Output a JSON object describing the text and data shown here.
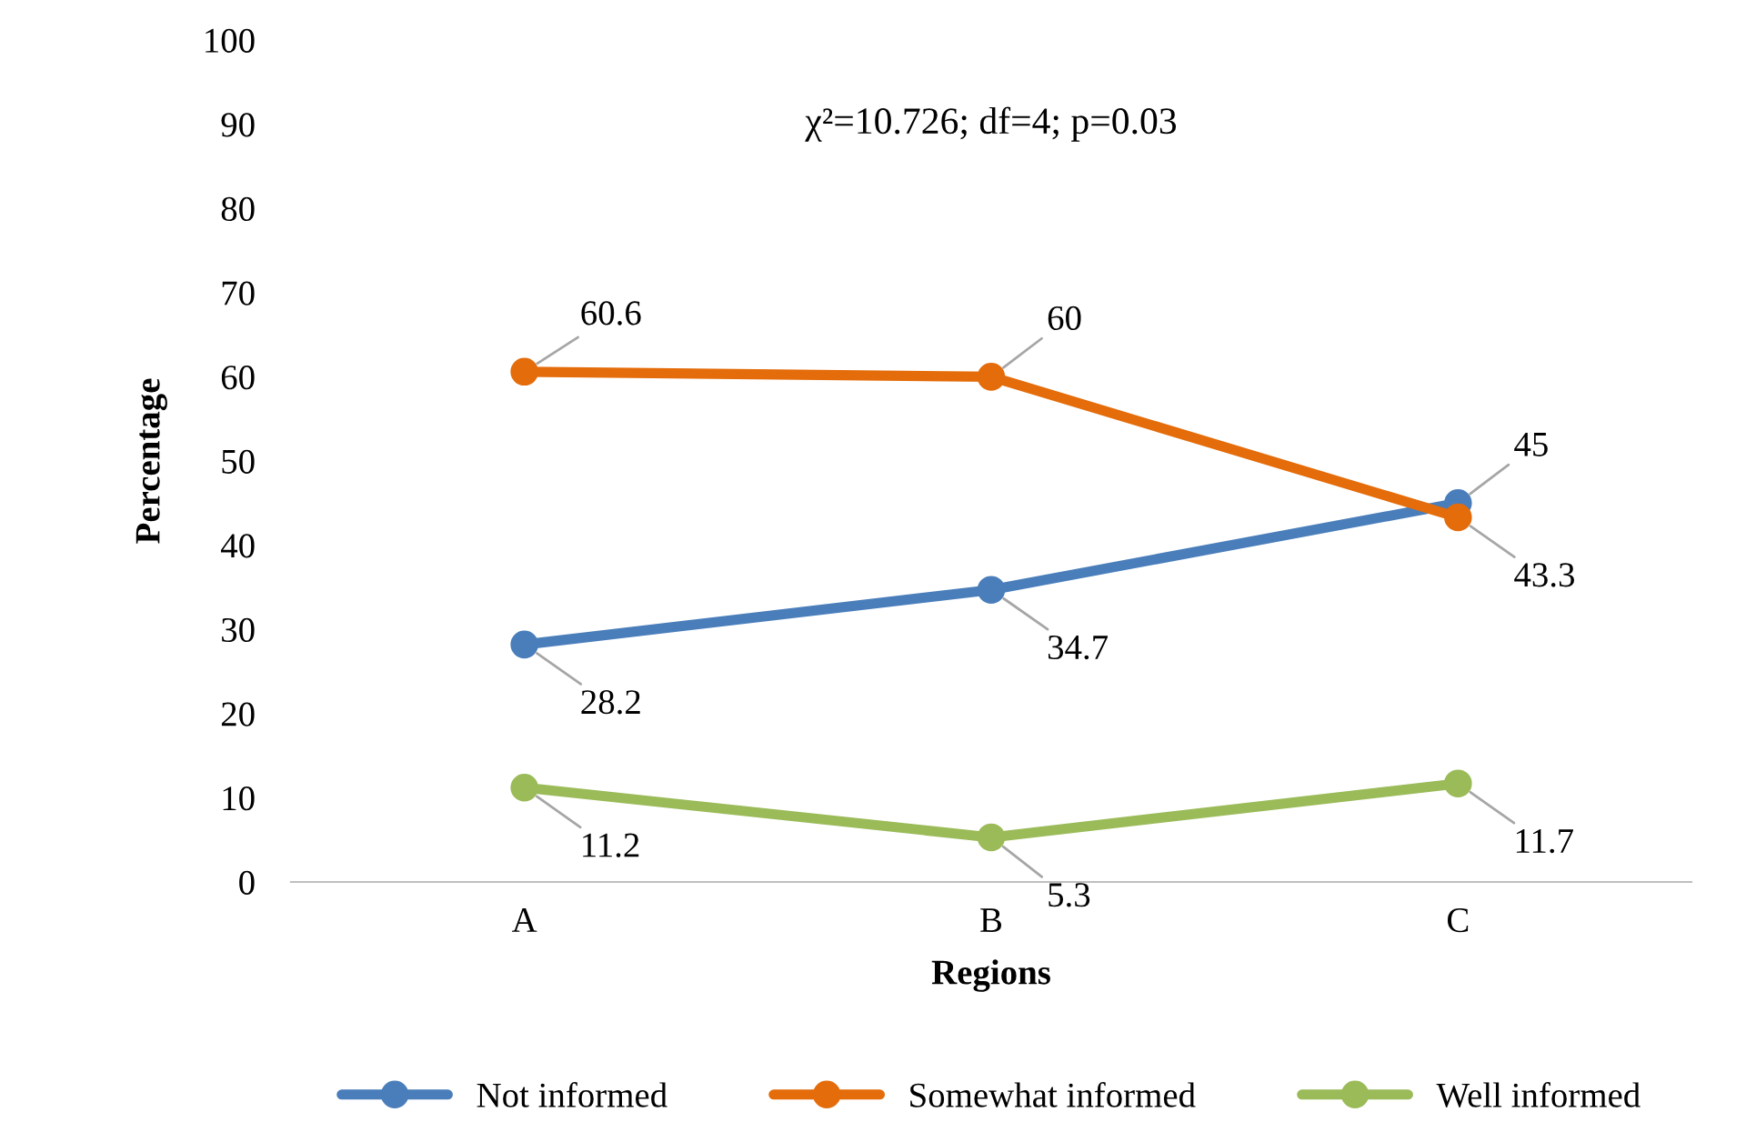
{
  "chart_data": {
    "type": "line",
    "xlabel": "Regions",
    "ylabel": "Percentage",
    "categories": [
      "A",
      "B",
      "C"
    ],
    "series": [
      {
        "name": "Not informed",
        "color": "#4a7ebb",
        "values": [
          28.2,
          34.7,
          45
        ]
      },
      {
        "name": "Somewhat informed",
        "color": "#e46c0a",
        "values": [
          60.6,
          60,
          43.3
        ]
      },
      {
        "name": "Well informed",
        "color": "#9bbb59",
        "values": [
          11.2,
          5.3,
          11.7
        ]
      }
    ],
    "ylim": [
      0,
      100
    ],
    "yticks": [
      0,
      10,
      20,
      30,
      40,
      50,
      60,
      70,
      80,
      90,
      100
    ],
    "annotations": [
      "χ²=10.726; df=4; p=0.03"
    ],
    "data_labels": true,
    "grid": false,
    "legend": "bottom",
    "marker": "circle",
    "line_style": "solid"
  }
}
